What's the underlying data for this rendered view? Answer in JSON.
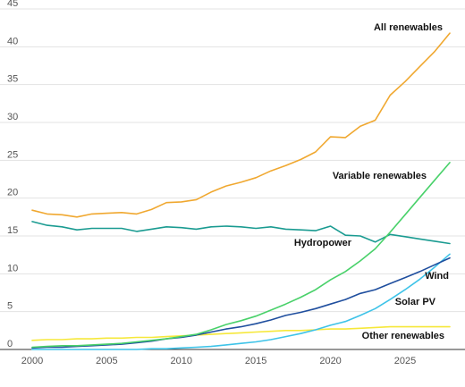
{
  "chart_data": {
    "type": "line",
    "title": "",
    "xlabel": "",
    "ylabel": "",
    "xlim": [
      2000,
      2028
    ],
    "ylim": [
      0,
      45
    ],
    "grid": true,
    "legend": "inline-labels",
    "x_ticks": [
      "2000",
      "2005",
      "2010",
      "2015",
      "2020",
      "2025"
    ],
    "y_ticks": [
      "0",
      "5",
      "10",
      "15",
      "20",
      "25",
      "30",
      "35",
      "40",
      "45"
    ],
    "x": [
      2000,
      2001,
      2002,
      2003,
      2004,
      2005,
      2006,
      2007,
      2008,
      2009,
      2010,
      2011,
      2012,
      2013,
      2014,
      2015,
      2016,
      2017,
      2018,
      2019,
      2020,
      2021,
      2022,
      2023,
      2024,
      2025,
      2026,
      2027,
      2028
    ],
    "series": [
      {
        "name": "All renewables",
        "color": "#f0a830",
        "values": [
          18.4,
          17.9,
          17.8,
          17.5,
          17.9,
          18.0,
          18.1,
          17.9,
          18.5,
          19.4,
          19.5,
          19.8,
          20.8,
          21.6,
          22.1,
          22.7,
          23.6,
          24.3,
          25.1,
          26.1,
          28.1,
          28.0,
          29.5,
          30.3,
          33.6,
          35.4,
          37.4,
          39.4,
          41.8
        ]
      },
      {
        "name": "Variable renewables",
        "color": "#49d16a",
        "values": [
          0.3,
          0.4,
          0.5,
          0.5,
          0.6,
          0.7,
          0.8,
          1.0,
          1.2,
          1.4,
          1.7,
          2.0,
          2.6,
          3.3,
          3.8,
          4.4,
          5.2,
          6.0,
          6.9,
          7.9,
          9.2,
          10.3,
          11.7,
          13.3,
          15.5,
          17.8,
          20.1,
          22.4,
          24.7
        ]
      },
      {
        "name": "Hydropower",
        "color": "#1a9b91",
        "values": [
          16.9,
          16.4,
          16.2,
          15.8,
          16.0,
          16.0,
          16.0,
          15.6,
          15.9,
          16.2,
          16.1,
          15.9,
          16.2,
          16.3,
          16.2,
          16.0,
          16.2,
          15.9,
          15.8,
          15.7,
          16.3,
          15.1,
          15.0,
          14.2,
          15.2,
          14.9,
          14.6,
          14.3,
          14.0
        ]
      },
      {
        "name": "Wind",
        "color": "#1f4e9e",
        "values": [
          0.2,
          0.3,
          0.3,
          0.4,
          0.5,
          0.6,
          0.7,
          0.9,
          1.1,
          1.4,
          1.6,
          1.9,
          2.3,
          2.7,
          3.0,
          3.4,
          3.9,
          4.5,
          4.9,
          5.4,
          6.0,
          6.6,
          7.4,
          7.9,
          8.7,
          9.5,
          10.3,
          11.2,
          12.1
        ]
      },
      {
        "name": "Solar PV",
        "color": "#3ec3e8",
        "values": [
          0.0,
          0.0,
          0.0,
          0.0,
          0.0,
          0.0,
          0.0,
          0.0,
          0.1,
          0.1,
          0.2,
          0.3,
          0.4,
          0.6,
          0.8,
          1.0,
          1.3,
          1.7,
          2.1,
          2.6,
          3.2,
          3.7,
          4.5,
          5.4,
          6.6,
          7.9,
          9.3,
          10.9,
          12.6
        ]
      },
      {
        "name": "Other renewables",
        "color": "#f6e83a",
        "values": [
          1.2,
          1.3,
          1.3,
          1.4,
          1.4,
          1.5,
          1.5,
          1.6,
          1.6,
          1.7,
          1.8,
          1.9,
          2.0,
          2.1,
          2.2,
          2.3,
          2.4,
          2.5,
          2.5,
          2.6,
          2.7,
          2.7,
          2.8,
          2.9,
          3.0,
          3.0,
          3.0,
          3.0,
          3.0
        ]
      }
    ]
  }
}
